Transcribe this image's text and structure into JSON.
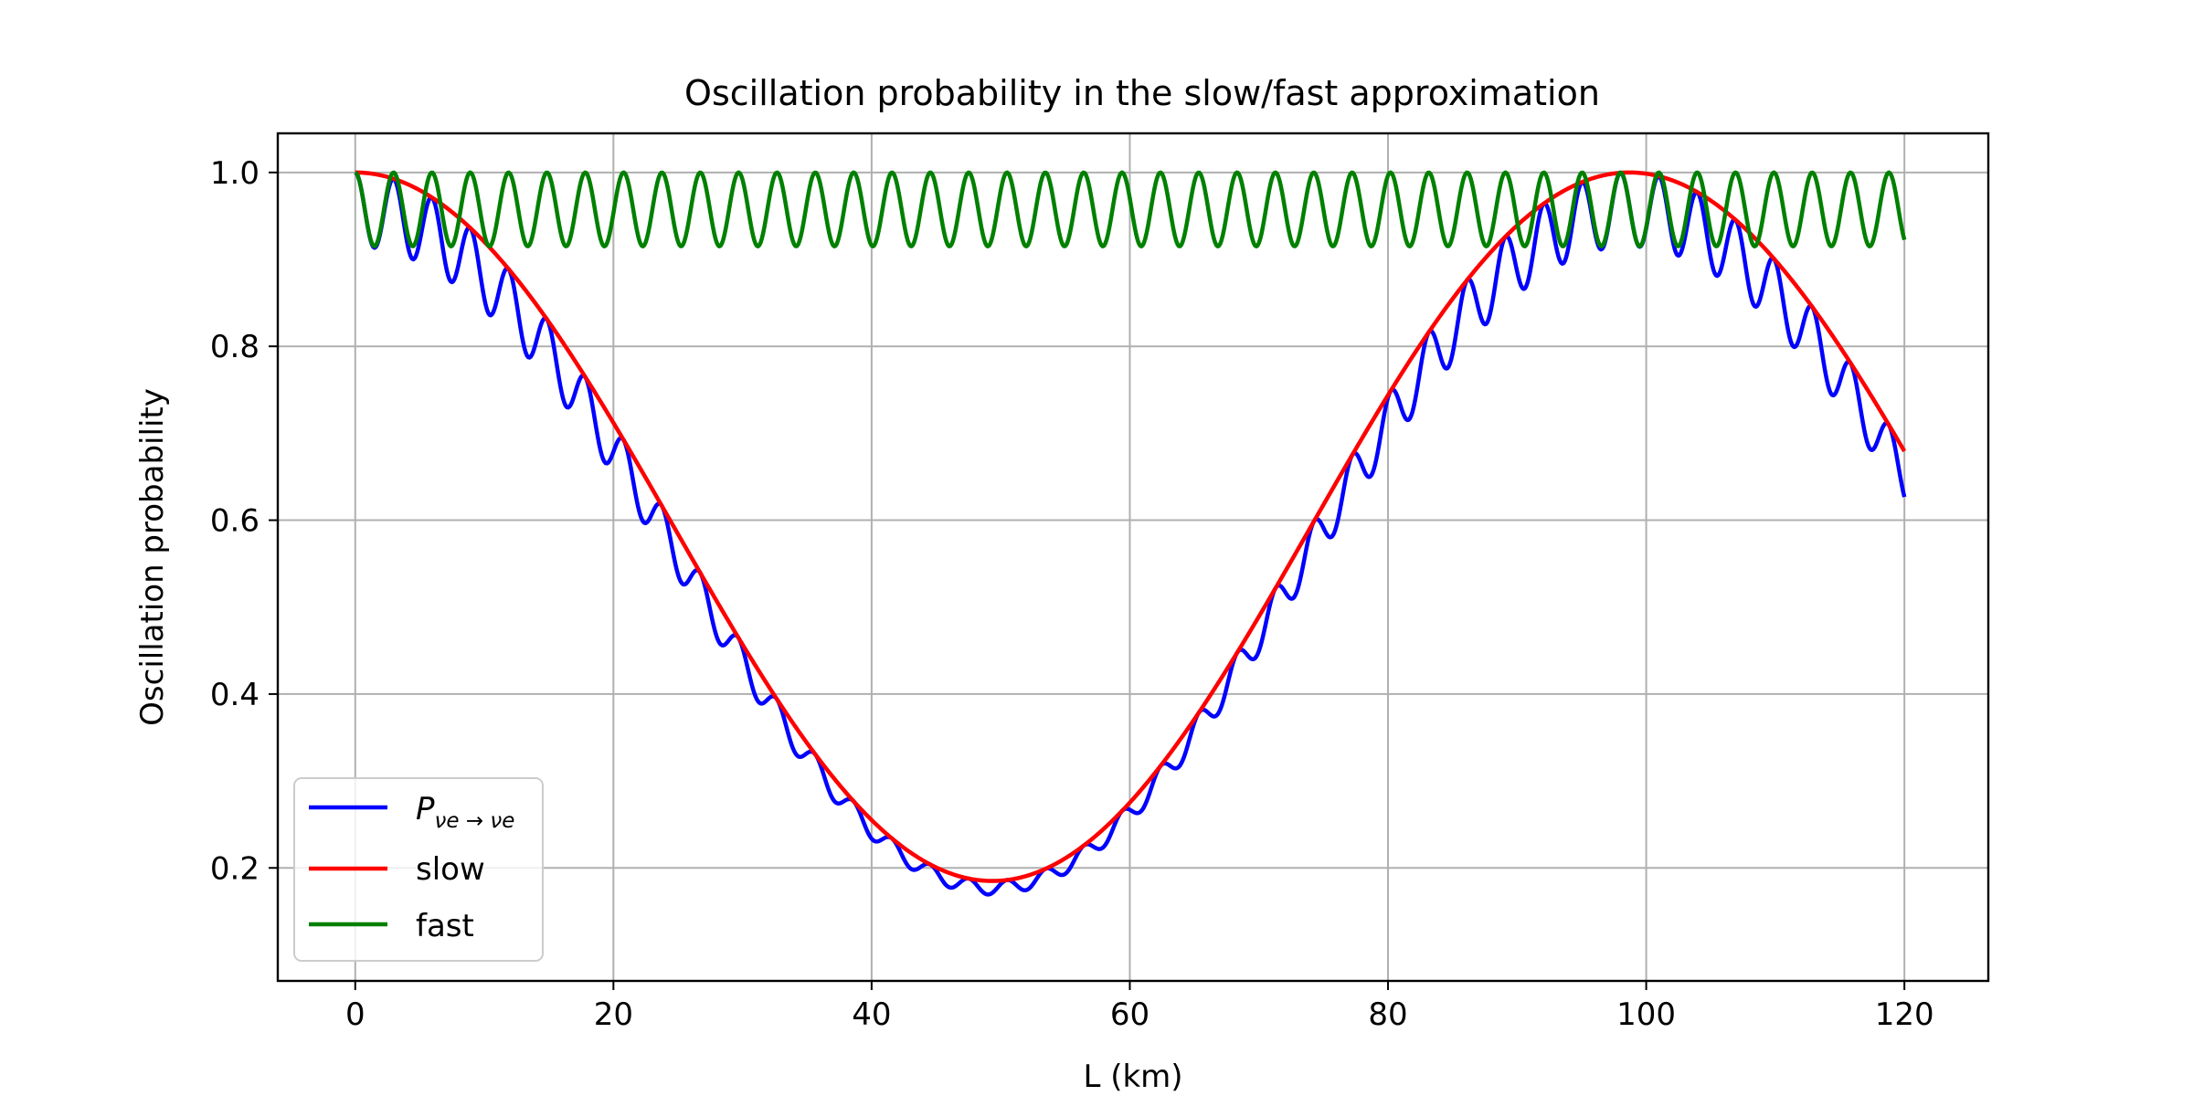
{
  "chart_data": {
    "type": "line",
    "title": "Oscillation probability in the slow/fast approximation",
    "xlabel": "L (km)",
    "ylabel": "Oscillation probability",
    "xlim": [
      -6,
      126.5
    ],
    "ylim": [
      0.07,
      1.045
    ],
    "xticks": [
      0,
      20,
      40,
      60,
      80,
      100,
      120
    ],
    "xtick_labels": [
      "0",
      "20",
      "40",
      "60",
      "80",
      "100",
      "120"
    ],
    "yticks": [
      0.2,
      0.4,
      0.6,
      0.8,
      1.0
    ],
    "ytick_labels": [
      "0.2",
      "0.4",
      "0.6",
      "0.8",
      "1.0"
    ],
    "grid": true,
    "legend_position": "lower-left",
    "model": {
      "x_range": [
        0,
        120
      ],
      "samples": 1200,
      "slow_amplitude": 0.815,
      "slow_period_km": 98.7,
      "fast_amplitude": 0.085,
      "fast_period_km": 2.97
    },
    "series": [
      {
        "id": "full",
        "name": "P",
        "legend_subscript": "νe → νe",
        "color": "#0000ff",
        "formula": "slow * fast"
      },
      {
        "id": "slow",
        "name": "slow",
        "color": "#ff0000",
        "formula": "1 - slow_amplitude * sin^2(pi * L / slow_period_km)"
      },
      {
        "id": "fast",
        "name": "fast",
        "color": "#008000",
        "formula": "1 - fast_amplitude * sin^2(pi * L / fast_period_km)"
      }
    ]
  }
}
